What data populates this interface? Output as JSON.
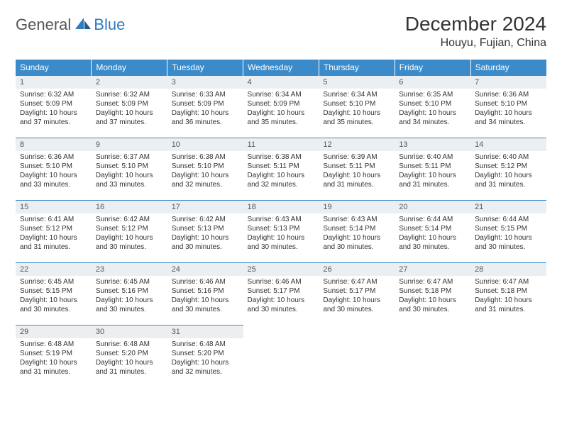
{
  "logo": {
    "general": "General",
    "blue": "Blue"
  },
  "title": "December 2024",
  "location": "Houyu, Fujian, China",
  "colors": {
    "header_bg": "#3b8bca",
    "header_text": "#ffffff",
    "daynum_bg": "#eceff1",
    "border": "#3b8bca",
    "logo_blue": "#2f7cc0"
  },
  "weekdays": [
    "Sunday",
    "Monday",
    "Tuesday",
    "Wednesday",
    "Thursday",
    "Friday",
    "Saturday"
  ],
  "days": [
    {
      "n": 1,
      "sr": "6:32 AM",
      "ss": "5:09 PM",
      "dl": "10 hours and 37 minutes."
    },
    {
      "n": 2,
      "sr": "6:32 AM",
      "ss": "5:09 PM",
      "dl": "10 hours and 37 minutes."
    },
    {
      "n": 3,
      "sr": "6:33 AM",
      "ss": "5:09 PM",
      "dl": "10 hours and 36 minutes."
    },
    {
      "n": 4,
      "sr": "6:34 AM",
      "ss": "5:09 PM",
      "dl": "10 hours and 35 minutes."
    },
    {
      "n": 5,
      "sr": "6:34 AM",
      "ss": "5:10 PM",
      "dl": "10 hours and 35 minutes."
    },
    {
      "n": 6,
      "sr": "6:35 AM",
      "ss": "5:10 PM",
      "dl": "10 hours and 34 minutes."
    },
    {
      "n": 7,
      "sr": "6:36 AM",
      "ss": "5:10 PM",
      "dl": "10 hours and 34 minutes."
    },
    {
      "n": 8,
      "sr": "6:36 AM",
      "ss": "5:10 PM",
      "dl": "10 hours and 33 minutes."
    },
    {
      "n": 9,
      "sr": "6:37 AM",
      "ss": "5:10 PM",
      "dl": "10 hours and 33 minutes."
    },
    {
      "n": 10,
      "sr": "6:38 AM",
      "ss": "5:10 PM",
      "dl": "10 hours and 32 minutes."
    },
    {
      "n": 11,
      "sr": "6:38 AM",
      "ss": "5:11 PM",
      "dl": "10 hours and 32 minutes."
    },
    {
      "n": 12,
      "sr": "6:39 AM",
      "ss": "5:11 PM",
      "dl": "10 hours and 31 minutes."
    },
    {
      "n": 13,
      "sr": "6:40 AM",
      "ss": "5:11 PM",
      "dl": "10 hours and 31 minutes."
    },
    {
      "n": 14,
      "sr": "6:40 AM",
      "ss": "5:12 PM",
      "dl": "10 hours and 31 minutes."
    },
    {
      "n": 15,
      "sr": "6:41 AM",
      "ss": "5:12 PM",
      "dl": "10 hours and 31 minutes."
    },
    {
      "n": 16,
      "sr": "6:42 AM",
      "ss": "5:12 PM",
      "dl": "10 hours and 30 minutes."
    },
    {
      "n": 17,
      "sr": "6:42 AM",
      "ss": "5:13 PM",
      "dl": "10 hours and 30 minutes."
    },
    {
      "n": 18,
      "sr": "6:43 AM",
      "ss": "5:13 PM",
      "dl": "10 hours and 30 minutes."
    },
    {
      "n": 19,
      "sr": "6:43 AM",
      "ss": "5:14 PM",
      "dl": "10 hours and 30 minutes."
    },
    {
      "n": 20,
      "sr": "6:44 AM",
      "ss": "5:14 PM",
      "dl": "10 hours and 30 minutes."
    },
    {
      "n": 21,
      "sr": "6:44 AM",
      "ss": "5:15 PM",
      "dl": "10 hours and 30 minutes."
    },
    {
      "n": 22,
      "sr": "6:45 AM",
      "ss": "5:15 PM",
      "dl": "10 hours and 30 minutes."
    },
    {
      "n": 23,
      "sr": "6:45 AM",
      "ss": "5:16 PM",
      "dl": "10 hours and 30 minutes."
    },
    {
      "n": 24,
      "sr": "6:46 AM",
      "ss": "5:16 PM",
      "dl": "10 hours and 30 minutes."
    },
    {
      "n": 25,
      "sr": "6:46 AM",
      "ss": "5:17 PM",
      "dl": "10 hours and 30 minutes."
    },
    {
      "n": 26,
      "sr": "6:47 AM",
      "ss": "5:17 PM",
      "dl": "10 hours and 30 minutes."
    },
    {
      "n": 27,
      "sr": "6:47 AM",
      "ss": "5:18 PM",
      "dl": "10 hours and 30 minutes."
    },
    {
      "n": 28,
      "sr": "6:47 AM",
      "ss": "5:18 PM",
      "dl": "10 hours and 31 minutes."
    },
    {
      "n": 29,
      "sr": "6:48 AM",
      "ss": "5:19 PM",
      "dl": "10 hours and 31 minutes."
    },
    {
      "n": 30,
      "sr": "6:48 AM",
      "ss": "5:20 PM",
      "dl": "10 hours and 31 minutes."
    },
    {
      "n": 31,
      "sr": "6:48 AM",
      "ss": "5:20 PM",
      "dl": "10 hours and 32 minutes."
    }
  ],
  "labels": {
    "sunrise": "Sunrise:",
    "sunset": "Sunset:",
    "daylight": "Daylight:"
  },
  "layout": {
    "start_weekday": 0,
    "cols": 7
  }
}
